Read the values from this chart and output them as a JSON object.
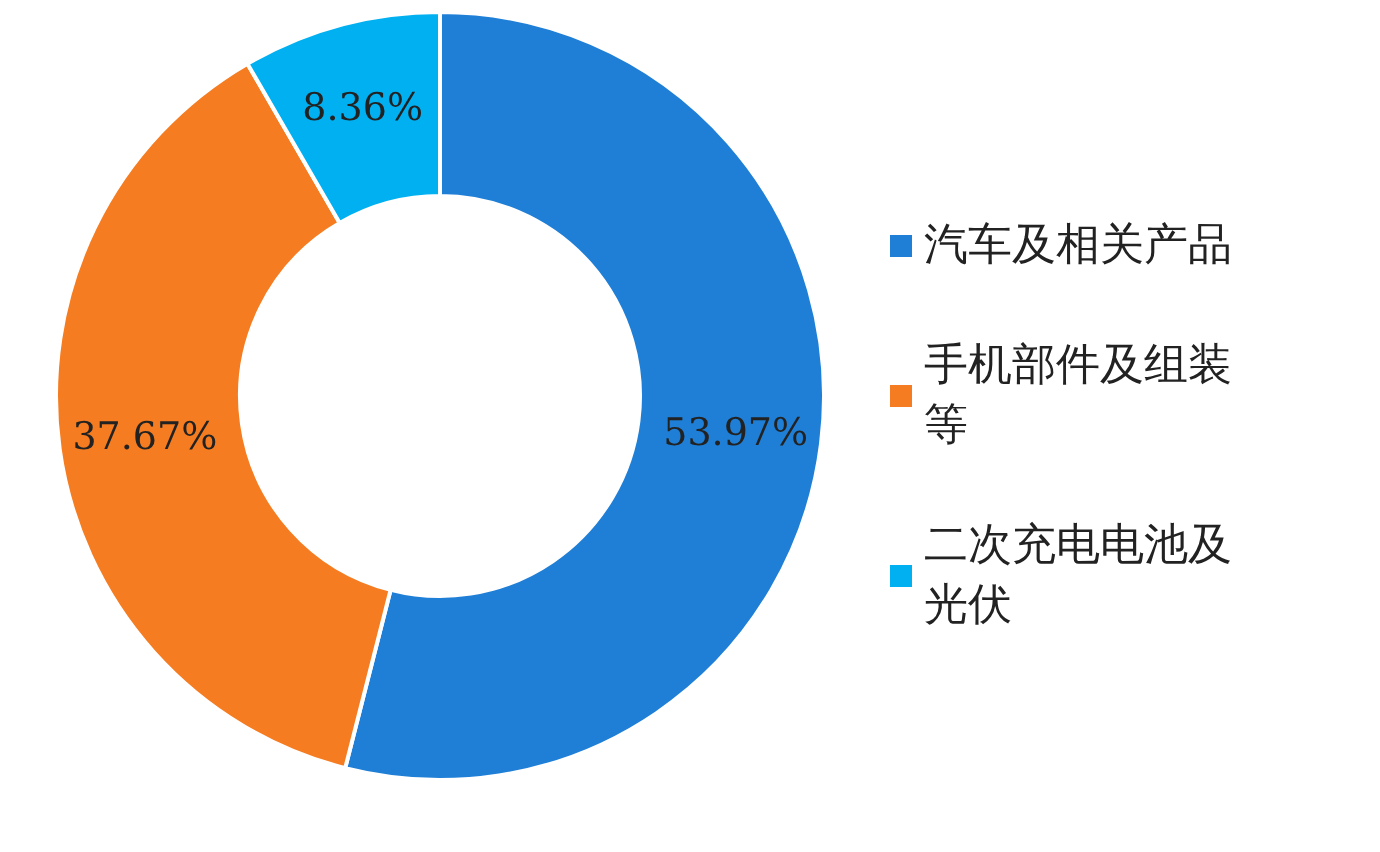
{
  "chart_data": {
    "type": "donut",
    "categories": [
      "汽车及相关产品",
      "手机部件及组装等",
      "二次充电电池及光伏"
    ],
    "values": [
      53.97,
      37.67,
      8.36
    ],
    "colors": [
      "#1f7fd6",
      "#f57c20",
      "#00b0f0"
    ],
    "value_labels": [
      "53.97%",
      "37.67%",
      "8.36%"
    ],
    "legend": "right"
  }
}
